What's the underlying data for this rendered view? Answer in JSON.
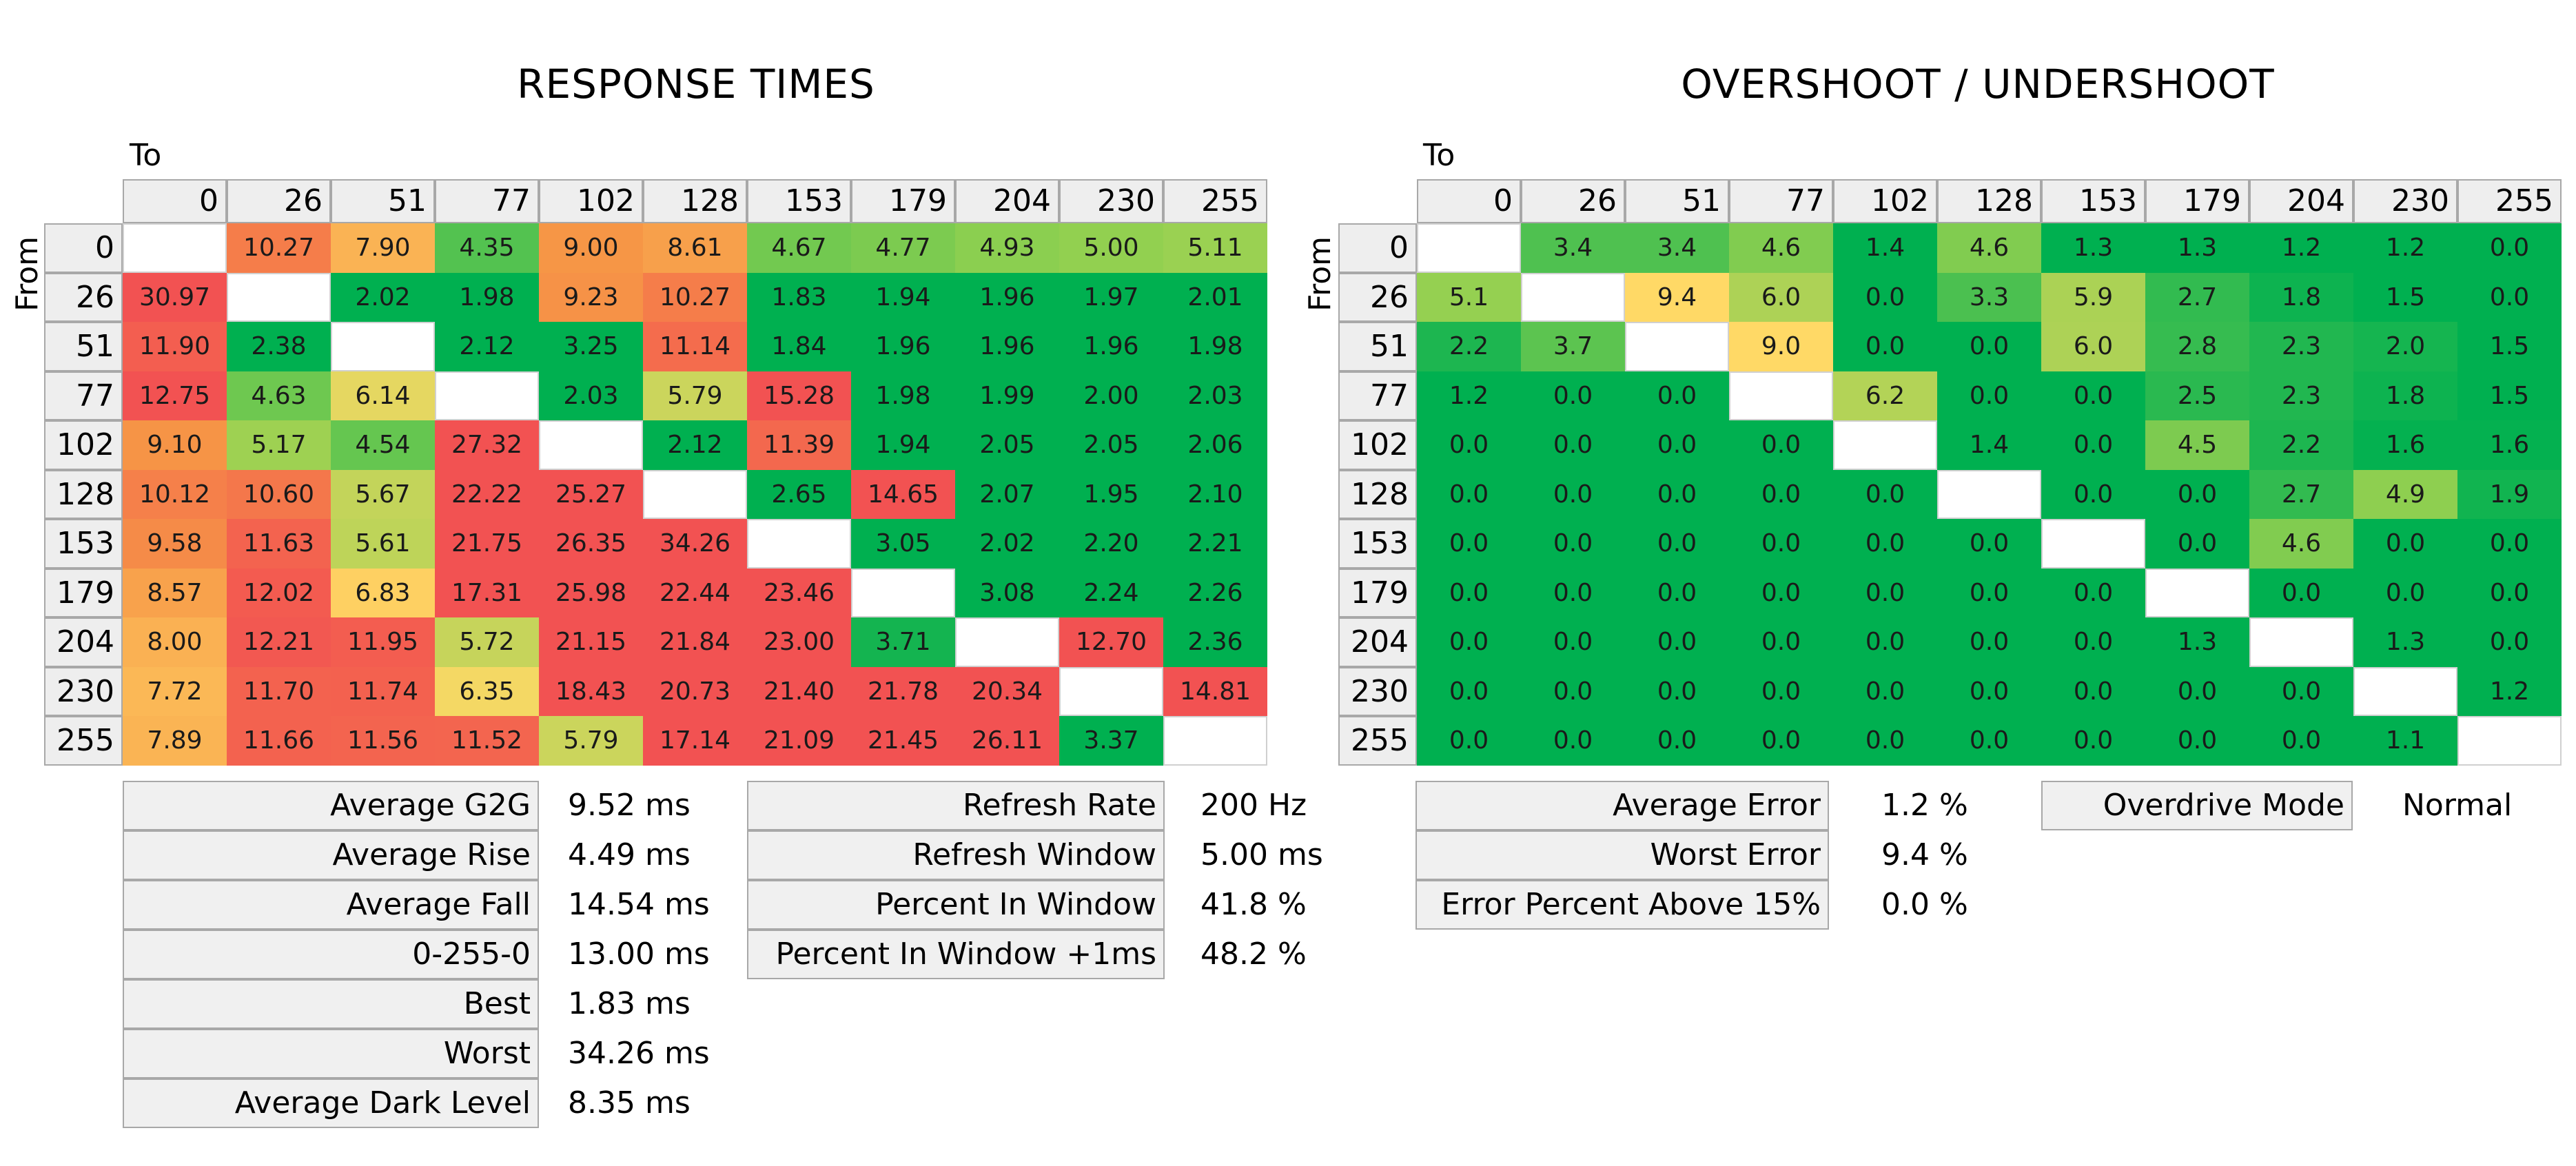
{
  "chart_data": [
    {
      "type": "heatmap",
      "title": "RESPONSE TIMES",
      "xlabel": "To",
      "ylabel": "From",
      "categories": [
        0,
        26,
        51,
        77,
        102,
        128,
        153,
        179,
        204,
        230,
        255
      ],
      "values": [
        [
          null,
          10.27,
          7.9,
          4.35,
          9.0,
          8.61,
          4.67,
          4.77,
          4.93,
          5.0,
          5.11
        ],
        [
          30.97,
          null,
          2.02,
          1.98,
          9.23,
          10.27,
          1.83,
          1.94,
          1.96,
          1.97,
          2.01
        ],
        [
          11.9,
          2.38,
          null,
          2.12,
          3.25,
          11.14,
          1.84,
          1.96,
          1.96,
          1.96,
          1.98
        ],
        [
          12.75,
          4.63,
          6.14,
          null,
          2.03,
          5.79,
          15.28,
          1.98,
          1.99,
          2.0,
          2.03
        ],
        [
          9.1,
          5.17,
          4.54,
          27.32,
          null,
          2.12,
          11.39,
          1.94,
          2.05,
          2.05,
          2.06
        ],
        [
          10.12,
          10.6,
          5.67,
          22.22,
          25.27,
          null,
          2.65,
          14.65,
          2.07,
          1.95,
          2.1
        ],
        [
          9.58,
          11.63,
          5.61,
          21.75,
          26.35,
          34.26,
          null,
          3.05,
          2.02,
          2.2,
          2.21
        ],
        [
          8.57,
          12.02,
          6.83,
          17.31,
          25.98,
          22.44,
          23.46,
          null,
          3.08,
          2.24,
          2.26
        ],
        [
          8.0,
          12.21,
          11.95,
          5.72,
          21.15,
          21.84,
          23.0,
          3.71,
          null,
          12.7,
          2.36
        ],
        [
          7.72,
          11.7,
          11.74,
          6.35,
          18.43,
          20.73,
          21.4,
          21.78,
          20.34,
          null,
          14.81
        ],
        [
          7.89,
          11.66,
          11.56,
          11.52,
          5.79,
          17.14,
          21.09,
          21.45,
          26.11,
          3.37,
          null
        ]
      ],
      "decimals": 2
    },
    {
      "type": "heatmap",
      "title": "OVERSHOOT / UNDERSHOOT",
      "xlabel": "To",
      "ylabel": "From",
      "categories": [
        0,
        26,
        51,
        77,
        102,
        128,
        153,
        179,
        204,
        230,
        255
      ],
      "values": [
        [
          null,
          3.4,
          3.4,
          4.6,
          1.4,
          4.6,
          1.3,
          1.3,
          1.2,
          1.2,
          0.0
        ],
        [
          5.1,
          null,
          9.4,
          6.0,
          0.0,
          3.3,
          5.9,
          2.7,
          1.8,
          1.5,
          0.0
        ],
        [
          2.2,
          3.7,
          null,
          9.0,
          0.0,
          0.0,
          6.0,
          2.8,
          2.3,
          2.0,
          1.5
        ],
        [
          1.2,
          0.0,
          0.0,
          null,
          6.2,
          0.0,
          0.0,
          2.5,
          2.3,
          1.8,
          1.5
        ],
        [
          0.0,
          0.0,
          0.0,
          0.0,
          null,
          1.4,
          0.0,
          4.5,
          2.2,
          1.6,
          1.6
        ],
        [
          0.0,
          0.0,
          0.0,
          0.0,
          0.0,
          null,
          0.0,
          0.0,
          2.7,
          4.9,
          1.9
        ],
        [
          0.0,
          0.0,
          0.0,
          0.0,
          0.0,
          0.0,
          null,
          0.0,
          4.6,
          0.0,
          0.0
        ],
        [
          0.0,
          0.0,
          0.0,
          0.0,
          0.0,
          0.0,
          0.0,
          null,
          0.0,
          0.0,
          0.0
        ],
        [
          0.0,
          0.0,
          0.0,
          0.0,
          0.0,
          0.0,
          0.0,
          1.3,
          null,
          1.3,
          0.0
        ],
        [
          0.0,
          0.0,
          0.0,
          0.0,
          0.0,
          0.0,
          0.0,
          0.0,
          0.0,
          null,
          1.2
        ],
        [
          0.0,
          0.0,
          0.0,
          0.0,
          0.0,
          0.0,
          0.0,
          0.0,
          0.0,
          1.1,
          null
        ]
      ],
      "decimals": 1
    }
  ],
  "stats": {
    "response_left": [
      {
        "label": "Average G2G",
        "value": "9.52 ms"
      },
      {
        "label": "Average Rise",
        "value": "4.49 ms"
      },
      {
        "label": "Average Fall",
        "value": "14.54 ms"
      },
      {
        "label": "0-255-0",
        "value": "13.00 ms"
      },
      {
        "label": "Best",
        "value": "1.83 ms"
      },
      {
        "label": "Worst",
        "value": "34.26 ms"
      },
      {
        "label": "Average Dark Level",
        "value": "8.35 ms"
      }
    ],
    "response_right": [
      {
        "label": "Refresh Rate",
        "value": "200 Hz"
      },
      {
        "label": "Refresh Window",
        "value": "5.00 ms"
      },
      {
        "label": "Percent In Window",
        "value": "41.8 %"
      },
      {
        "label": "Percent In Window +1ms",
        "value": "48.2 %"
      }
    ],
    "overshoot_left": [
      {
        "label": "Average Error",
        "value": "1.2 %"
      },
      {
        "label": "Worst Error",
        "value": "9.4 %"
      },
      {
        "label": "Error Percent Above 15%",
        "value": "0.0 %"
      }
    ],
    "overshoot_right": [
      {
        "label": "Overdrive Mode",
        "value": "Normal"
      }
    ]
  }
}
